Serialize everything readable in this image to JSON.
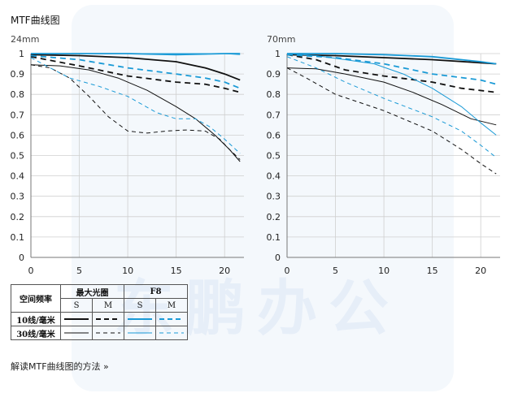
{
  "page": {
    "title": "MTF曲线图",
    "link_text": "解读MTF曲线图的方法 »",
    "watermark": "东鹏办公"
  },
  "legend": {
    "header_label": "空间频率",
    "group1": "最大光圈",
    "group2": "F8",
    "sub_labels": [
      "S",
      "M",
      "S",
      "M"
    ],
    "rows": [
      "10线/毫米",
      "30线/毫米"
    ]
  },
  "colors": {
    "black": "#111111",
    "blue": "#1a9ad6",
    "axis": "#888888"
  },
  "chart_data": [
    {
      "type": "line",
      "title": "24mm",
      "xlim": [
        0,
        22
      ],
      "ylim": [
        0,
        1
      ],
      "xticks": [
        0,
        5,
        10,
        15,
        20
      ],
      "yticks": [
        "0",
        "0.1",
        "0.2",
        "0.3",
        "0.4",
        "0.5",
        "0.6",
        "0.7",
        "0.8",
        "0.9",
        "1"
      ],
      "grid": true,
      "series": [
        {
          "lines": "10",
          "aperture": "max",
          "dir": "S",
          "color": "black",
          "dash": false,
          "width": 1.8,
          "x": [
            0,
            5,
            10,
            15,
            18,
            20,
            21.6
          ],
          "y": [
            0.995,
            0.99,
            0.98,
            0.96,
            0.93,
            0.9,
            0.87
          ]
        },
        {
          "lines": "10",
          "aperture": "max",
          "dir": "M",
          "color": "black",
          "dash": true,
          "width": 1.8,
          "x": [
            0,
            5,
            10,
            15,
            18,
            20,
            21.6
          ],
          "y": [
            0.985,
            0.94,
            0.89,
            0.86,
            0.85,
            0.83,
            0.81
          ]
        },
        {
          "lines": "10",
          "aperture": "F8",
          "dir": "S",
          "color": "blue",
          "dash": false,
          "width": 1.8,
          "x": [
            0,
            5,
            10,
            15,
            20,
            21.6
          ],
          "y": [
            1.0,
            1.0,
            1.0,
            0.995,
            1.0,
            1.0
          ]
        },
        {
          "lines": "10",
          "aperture": "F8",
          "dir": "M",
          "color": "blue",
          "dash": true,
          "width": 1.8,
          "x": [
            0,
            5,
            10,
            15,
            18,
            20,
            21.6
          ],
          "y": [
            0.99,
            0.97,
            0.93,
            0.9,
            0.88,
            0.86,
            0.83
          ]
        },
        {
          "lines": "30",
          "aperture": "max",
          "dir": "S",
          "color": "black",
          "dash": false,
          "width": 1,
          "x": [
            0,
            3,
            6,
            9,
            12,
            15,
            17,
            19,
            20.5,
            21.6
          ],
          "y": [
            0.945,
            0.94,
            0.92,
            0.88,
            0.82,
            0.74,
            0.68,
            0.6,
            0.53,
            0.47
          ]
        },
        {
          "lines": "30",
          "aperture": "max",
          "dir": "M",
          "color": "black",
          "dash": true,
          "width": 1,
          "x": [
            0,
            2,
            4,
            6,
            8,
            10,
            12,
            14,
            16,
            18,
            19.5,
            20.5,
            21.6
          ],
          "y": [
            0.945,
            0.93,
            0.88,
            0.79,
            0.69,
            0.62,
            0.61,
            0.62,
            0.625,
            0.62,
            0.58,
            0.53,
            0.48
          ]
        },
        {
          "lines": "30",
          "aperture": "F8",
          "dir": "S",
          "color": "blue",
          "dash": false,
          "width": 1,
          "x": [
            0,
            5,
            10,
            15,
            20,
            21.6
          ],
          "y": [
            1.0,
            1.0,
            1.0,
            1.0,
            1.0,
            0.995
          ]
        },
        {
          "lines": "30",
          "aperture": "F8",
          "dir": "M",
          "color": "blue",
          "dash": true,
          "width": 1,
          "x": [
            0,
            2,
            4,
            7,
            10,
            13,
            15,
            17,
            18.5,
            20,
            21.6
          ],
          "y": [
            0.98,
            0.93,
            0.88,
            0.84,
            0.79,
            0.71,
            0.68,
            0.68,
            0.64,
            0.58,
            0.51
          ]
        }
      ]
    },
    {
      "type": "line",
      "title": "70mm",
      "xlim": [
        0,
        22
      ],
      "ylim": [
        0,
        1
      ],
      "xticks": [
        0,
        5,
        10,
        15,
        20
      ],
      "yticks": [
        "0",
        "0.1",
        "0.2",
        "0.3",
        "0.4",
        "0.5",
        "0.6",
        "0.7",
        "0.8",
        "0.9",
        "1"
      ],
      "grid": true,
      "series": [
        {
          "lines": "10",
          "aperture": "max",
          "dir": "S",
          "color": "black",
          "dash": false,
          "width": 1.8,
          "x": [
            0,
            5,
            10,
            15,
            20,
            21.6
          ],
          "y": [
            0.995,
            0.99,
            0.98,
            0.97,
            0.955,
            0.95
          ]
        },
        {
          "lines": "10",
          "aperture": "max",
          "dir": "M",
          "color": "black",
          "dash": true,
          "width": 1.8,
          "x": [
            0,
            3,
            6,
            10,
            15,
            18,
            21.6
          ],
          "y": [
            0.995,
            0.97,
            0.92,
            0.89,
            0.86,
            0.83,
            0.81
          ]
        },
        {
          "lines": "10",
          "aperture": "F8",
          "dir": "S",
          "color": "blue",
          "dash": false,
          "width": 1.8,
          "x": [
            0,
            5,
            10,
            15,
            20,
            21.6
          ],
          "y": [
            1.0,
            1.0,
            0.995,
            0.985,
            0.96,
            0.95
          ]
        },
        {
          "lines": "10",
          "aperture": "F8",
          "dir": "M",
          "color": "blue",
          "dash": true,
          "width": 1.8,
          "x": [
            0,
            5,
            10,
            15,
            20,
            21.6
          ],
          "y": [
            0.995,
            0.98,
            0.95,
            0.9,
            0.87,
            0.85
          ]
        },
        {
          "lines": "30",
          "aperture": "max",
          "dir": "S",
          "color": "black",
          "dash": false,
          "width": 1,
          "x": [
            0,
            3,
            6,
            10,
            13,
            16,
            19,
            21.6
          ],
          "y": [
            0.93,
            0.925,
            0.9,
            0.86,
            0.81,
            0.75,
            0.68,
            0.65
          ]
        },
        {
          "lines": "30",
          "aperture": "max",
          "dir": "M",
          "color": "black",
          "dash": true,
          "width": 1,
          "x": [
            0,
            2,
            5,
            10,
            15,
            18,
            20,
            21.6
          ],
          "y": [
            0.93,
            0.88,
            0.8,
            0.72,
            0.62,
            0.53,
            0.46,
            0.41
          ]
        },
        {
          "lines": "30",
          "aperture": "F8",
          "dir": "S",
          "color": "blue",
          "dash": false,
          "width": 1,
          "x": [
            0,
            3,
            6,
            9,
            12,
            15,
            18,
            20,
            21.6
          ],
          "y": [
            1.0,
            0.99,
            0.97,
            0.95,
            0.9,
            0.83,
            0.74,
            0.66,
            0.6
          ]
        },
        {
          "lines": "30",
          "aperture": "F8",
          "dir": "M",
          "color": "blue",
          "dash": true,
          "width": 1,
          "x": [
            0,
            3,
            6,
            10,
            15,
            18,
            20,
            21.6
          ],
          "y": [
            0.985,
            0.93,
            0.86,
            0.78,
            0.69,
            0.62,
            0.55,
            0.49
          ]
        }
      ]
    }
  ]
}
